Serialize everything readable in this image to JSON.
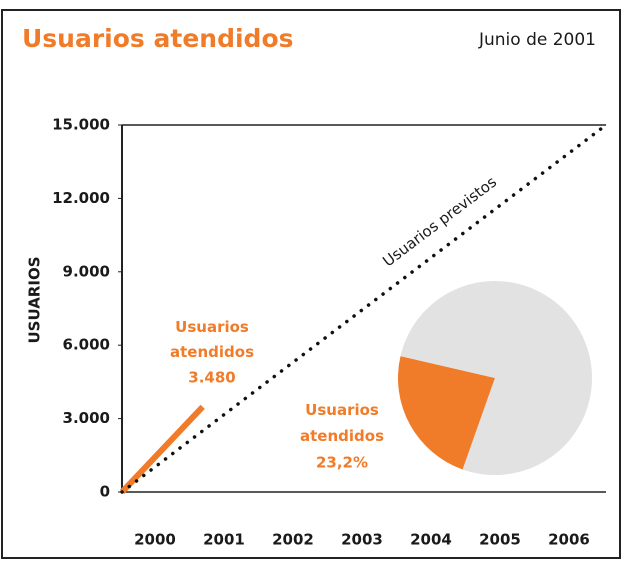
{
  "chart_data": [
    {
      "type": "line",
      "title": "Usuarios atendidos",
      "subtitle": "Junio de 2001",
      "ylabel": "USUARIOS",
      "x": [
        2000,
        2001,
        2002,
        2003,
        2004,
        2005,
        2006
      ],
      "xlim": [
        2000,
        2006
      ],
      "ylim": [
        0,
        15000
      ],
      "yticks": [
        0,
        {
          "value": 3000,
          "label": "3.000"
        },
        {
          "value": 6000,
          "label": "6.000"
        },
        {
          "value": 9000,
          "label": "9.000"
        },
        {
          "value": 12000,
          "label": "12.000"
        },
        {
          "value": 15000,
          "label": "15.000"
        }
      ],
      "series": [
        {
          "name": "Usuarios atendidos",
          "color": "#f07c2a",
          "style": "solid",
          "values": [
            0,
            3480,
            null,
            null,
            null,
            null,
            null
          ],
          "value_labels": [
            null,
            "3.480",
            null,
            null,
            null,
            null,
            null
          ]
        },
        {
          "name": "Usuarios previstos",
          "color": "#111111",
          "style": "dotted",
          "values": [
            0,
            2500,
            5000,
            7500,
            10000,
            12500,
            15000
          ]
        }
      ]
    },
    {
      "type": "pie",
      "categories": [
        "Usuarios atendidos",
        null
      ],
      "values": [
        23.2,
        76.8
      ],
      "value_labels": [
        "23,2%",
        null
      ],
      "colors": [
        "#f07c2a",
        "#e2e2e2"
      ],
      "startangle": 193,
      "counterclock": true
    }
  ]
}
